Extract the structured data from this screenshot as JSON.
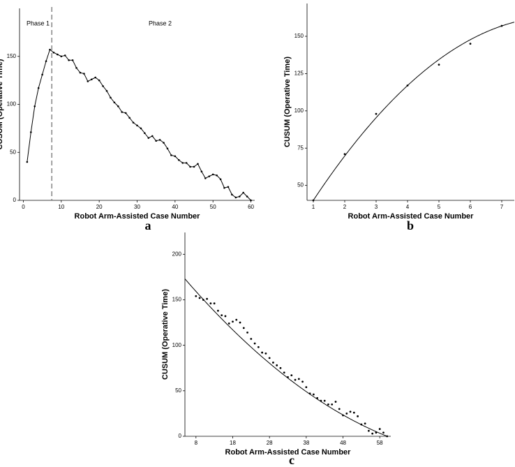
{
  "chart_data": [
    {
      "type": "line",
      "caption": "a",
      "x_label": "Robot Arm-Assisted Case Number",
      "y_label": "CUSUM (Operative Time)",
      "annotations": [
        "Phase 1",
        "Phase 2"
      ],
      "vline": 7.5,
      "x": [
        1,
        2,
        3,
        4,
        5,
        6,
        7,
        8,
        9,
        10,
        11,
        12,
        13,
        14,
        15,
        16,
        17,
        18,
        19,
        20,
        21,
        22,
        23,
        24,
        25,
        26,
        27,
        28,
        29,
        30,
        31,
        32,
        33,
        34,
        35,
        36,
        37,
        38,
        39,
        40,
        41,
        42,
        43,
        44,
        45,
        46,
        47,
        48,
        49,
        50,
        51,
        52,
        53,
        54,
        55,
        56,
        57,
        58,
        59,
        60
      ],
      "values": [
        40,
        71,
        98,
        117,
        131,
        145,
        157,
        154,
        152,
        150,
        151,
        146,
        146,
        138,
        133,
        132,
        124,
        126,
        128,
        125,
        119,
        114,
        107,
        102,
        98,
        92,
        91,
        86,
        81,
        78,
        75,
        70,
        65,
        67,
        62,
        63,
        60,
        54,
        47,
        46,
        42,
        39,
        39,
        35,
        35,
        38,
        30,
        23,
        25,
        27,
        26,
        22,
        13,
        14,
        6,
        3,
        4,
        8,
        4,
        0
      ],
      "color": "#000000",
      "xlim": [
        -1,
        61
      ],
      "ylim": [
        0,
        200
      ],
      "xticks": [
        0,
        10,
        20,
        30,
        40,
        50,
        60
      ],
      "yticks": [
        0,
        50,
        100,
        150
      ]
    },
    {
      "type": "scatter",
      "caption": "b",
      "x_label": "Robot Arm-Assisted Case Number",
      "y_label": "CUSUM (Operative Time)",
      "x": [
        1,
        2,
        3,
        4,
        5,
        6,
        7
      ],
      "values": [
        40,
        71,
        98,
        117,
        131,
        145,
        157
      ],
      "fit": {
        "type": "quadratic",
        "coefficients": [
          6.11,
          35.94,
          -2.056
        ]
      },
      "color": "#000000",
      "xlim": [
        0.8,
        7.4
      ],
      "ylim": [
        40,
        172
      ],
      "xticks": [
        1,
        2,
        3,
        4,
        5,
        6,
        7
      ],
      "yticks": [
        50,
        75,
        100,
        125,
        150
      ]
    },
    {
      "type": "scatter",
      "caption": "c",
      "x_label": "Robot Arm-Assisted Case Number",
      "y_label": "CUSUM (Operative Time)",
      "x": [
        8,
        9,
        10,
        11,
        12,
        13,
        14,
        15,
        16,
        17,
        18,
        19,
        20,
        21,
        22,
        23,
        24,
        25,
        26,
        27,
        28,
        29,
        30,
        31,
        32,
        33,
        34,
        35,
        36,
        37,
        38,
        39,
        40,
        41,
        42,
        43,
        44,
        45,
        46,
        47,
        48,
        49,
        50,
        51,
        52,
        53,
        54,
        55,
        56,
        57,
        58,
        59,
        60
      ],
      "values": [
        154,
        152,
        150,
        151,
        146,
        146,
        138,
        133,
        132,
        124,
        126,
        128,
        125,
        119,
        114,
        107,
        102,
        98,
        92,
        91,
        86,
        81,
        78,
        75,
        70,
        65,
        67,
        62,
        63,
        60,
        54,
        47,
        46,
        42,
        39,
        39,
        35,
        35,
        38,
        30,
        23,
        25,
        27,
        26,
        22,
        13,
        14,
        6,
        3,
        4,
        8,
        4,
        0
      ],
      "fit": {
        "type": "quadratic",
        "coefficients": [
          197.03,
          -4.945,
          0.02769
        ]
      },
      "color": "#000000",
      "xlim": [
        5,
        61
      ],
      "ylim": [
        0,
        224
      ],
      "xticks": [
        8,
        18,
        28,
        38,
        48,
        58
      ],
      "yticks": [
        0,
        50,
        100,
        150,
        200
      ]
    }
  ]
}
